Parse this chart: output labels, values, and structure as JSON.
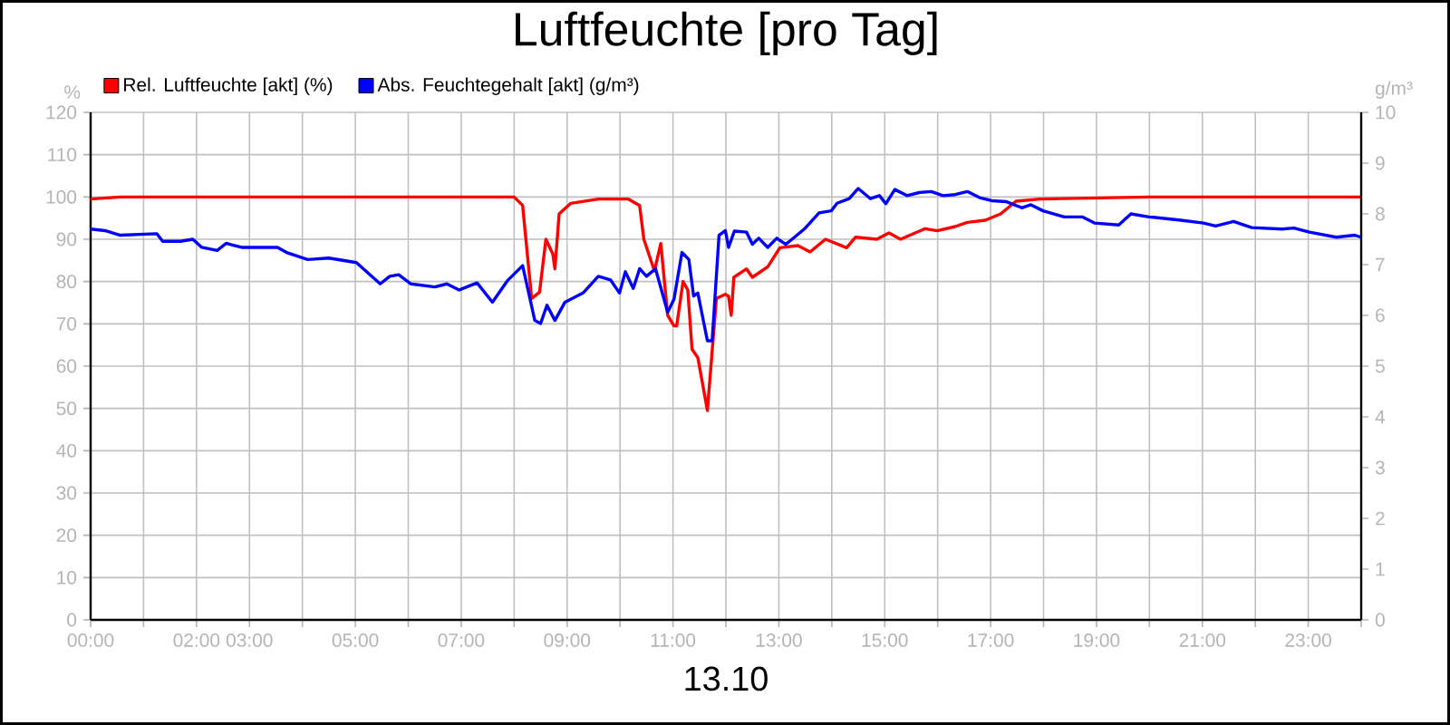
{
  "chart_data": {
    "type": "line",
    "title": "Luftfeuchte [pro Tag]",
    "xlabel": "13.10",
    "ylabel": "%",
    "y2label": "g/m³",
    "xlim": [
      0,
      24
    ],
    "xticks": [
      {
        "value": 0,
        "label": "00:00"
      },
      {
        "value": 1,
        "label": null
      },
      {
        "value": 2,
        "label": "02:00"
      },
      {
        "value": 3,
        "label": "03:00"
      },
      {
        "value": 4,
        "label": null
      },
      {
        "value": 5,
        "label": "05:00"
      },
      {
        "value": 6,
        "label": null
      },
      {
        "value": 7,
        "label": "07:00"
      },
      {
        "value": 8,
        "label": null
      },
      {
        "value": 9,
        "label": "09:00"
      },
      {
        "value": 10,
        "label": null
      },
      {
        "value": 11,
        "label": "11:00"
      },
      {
        "value": 12,
        "label": null
      },
      {
        "value": 13,
        "label": "13:00"
      },
      {
        "value": 14,
        "label": null
      },
      {
        "value": 15,
        "label": "15:00"
      },
      {
        "value": 16,
        "label": null
      },
      {
        "value": 17,
        "label": "17:00"
      },
      {
        "value": 18,
        "label": null
      },
      {
        "value": 19,
        "label": "19:00"
      },
      {
        "value": 20,
        "label": null
      },
      {
        "value": 21,
        "label": "21:00"
      },
      {
        "value": 22,
        "label": null
      },
      {
        "value": 23,
        "label": "23:00"
      },
      {
        "value": 24,
        "label": null
      }
    ],
    "ylim": [
      0,
      120
    ],
    "yticks": [
      0,
      10,
      20,
      30,
      40,
      50,
      60,
      70,
      80,
      90,
      100,
      110,
      120
    ],
    "y2lim": [
      0,
      10
    ],
    "y2ticks": [
      0,
      1,
      2,
      3,
      4,
      5,
      6,
      7,
      8,
      9,
      10
    ],
    "grid": true,
    "legend": "top left",
    "marker": "none",
    "series": [
      {
        "name": "Rel. Luftfeuchte [akt] (%)",
        "color": "#ff0000",
        "x": [
          0,
          0.56,
          2,
          4,
          6,
          7.5,
          8.0,
          8.16,
          8.33,
          8.48,
          8.6,
          8.73,
          8.77,
          8.85,
          9.07,
          9.59,
          10.16,
          10.37,
          10.45,
          10.65,
          10.77,
          10.9,
          11.02,
          11.07,
          11.19,
          11.28,
          11.36,
          11.47,
          11.65,
          11.82,
          11.99,
          12.05,
          12.1,
          12.15,
          12.39,
          12.5,
          12.79,
          13.02,
          13.36,
          13.59,
          13.88,
          14.28,
          14.45,
          14.85,
          15.08,
          15.3,
          15.76,
          15.99,
          16.33,
          16.56,
          16.9,
          17.19,
          17.48,
          17.93,
          19.99,
          24
        ],
        "values": [
          99.5,
          100,
          100,
          100,
          100,
          100,
          100,
          98,
          76,
          77.5,
          90,
          86.5,
          83,
          96,
          98.5,
          99.5,
          99.5,
          98,
          90,
          82.5,
          89,
          72,
          69.5,
          69.5,
          80,
          78,
          64,
          62,
          49.5,
          76,
          77,
          76.5,
          72,
          81,
          83,
          81,
          83.5,
          88,
          88.5,
          87,
          90,
          88,
          90.5,
          90,
          91.5,
          90,
          92.5,
          92,
          93,
          94,
          94.5,
          96,
          99,
          99.5,
          100,
          100
        ]
      },
      {
        "name": "Abs. Feuchtegehalt [akt] (g/m³)",
        "color": "#0000ff",
        "axis": "y2",
        "x": [
          0,
          0.27,
          0.56,
          1.25,
          1.36,
          1.7,
          1.93,
          2.1,
          2.39,
          2.56,
          2.85,
          3.53,
          3.7,
          4.1,
          4.5,
          5.02,
          5.47,
          5.65,
          5.82,
          6.05,
          6.5,
          6.73,
          6.96,
          7.3,
          7.59,
          7.87,
          8.16,
          8.39,
          8.5,
          8.62,
          8.77,
          8.96,
          9.3,
          9.59,
          9.82,
          9.99,
          10.1,
          10.25,
          10.37,
          10.5,
          10.67,
          10.9,
          11.02,
          11.17,
          11.3,
          11.39,
          11.47,
          11.65,
          11.74,
          11.87,
          11.99,
          12.05,
          12.16,
          12.39,
          12.5,
          12.62,
          12.79,
          12.96,
          13.13,
          13.25,
          13.48,
          13.76,
          13.99,
          14.1,
          14.33,
          14.5,
          14.73,
          14.9,
          15.02,
          15.19,
          15.42,
          15.65,
          15.88,
          16.1,
          16.33,
          16.56,
          16.79,
          17.02,
          17.3,
          17.59,
          17.76,
          17.99,
          18.39,
          18.73,
          18.96,
          19.42,
          19.65,
          19.99,
          20.56,
          21.02,
          21.25,
          21.59,
          21.93,
          22.5,
          22.73,
          23.02,
          23.53,
          23.88,
          23.99
        ],
        "values": [
          7.7,
          7.67,
          7.58,
          7.61,
          7.46,
          7.46,
          7.5,
          7.34,
          7.28,
          7.42,
          7.34,
          7.34,
          7.24,
          7.1,
          7.13,
          7.04,
          6.62,
          6.77,
          6.8,
          6.62,
          6.56,
          6.62,
          6.5,
          6.64,
          6.26,
          6.68,
          6.98,
          5.9,
          5.84,
          6.2,
          5.9,
          6.26,
          6.44,
          6.77,
          6.7,
          6.44,
          6.86,
          6.53,
          6.92,
          6.77,
          6.92,
          6.06,
          6.32,
          7.24,
          7.1,
          6.38,
          6.44,
          5.5,
          5.5,
          7.58,
          7.67,
          7.34,
          7.66,
          7.64,
          7.4,
          7.52,
          7.34,
          7.52,
          7.4,
          7.5,
          7.7,
          8.02,
          8.06,
          8.21,
          8.3,
          8.5,
          8.3,
          8.36,
          8.2,
          8.48,
          8.36,
          8.42,
          8.44,
          8.36,
          8.38,
          8.44,
          8.32,
          8.26,
          8.24,
          8.12,
          8.18,
          8.06,
          7.94,
          7.94,
          7.82,
          7.78,
          8.0,
          7.94,
          7.88,
          7.82,
          7.76,
          7.85,
          7.73,
          7.7,
          7.72,
          7.64,
          7.54,
          7.58,
          7.54
        ]
      }
    ]
  }
}
